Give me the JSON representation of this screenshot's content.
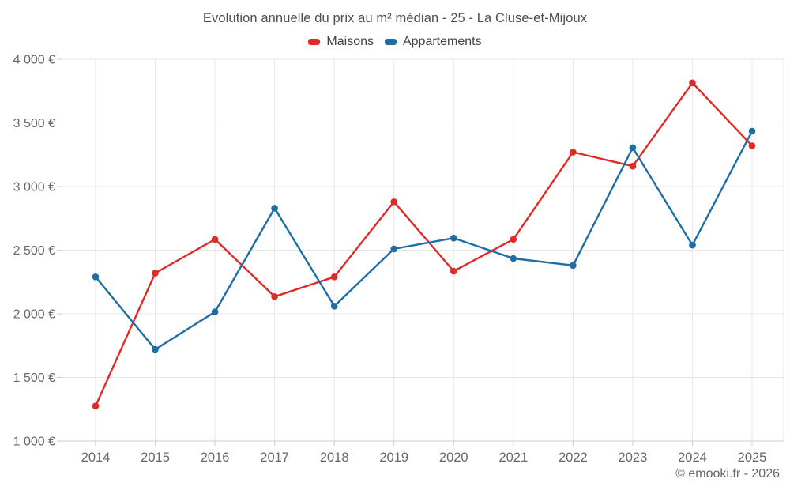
{
  "header": {
    "title": "Evolution annuelle du prix au m² médian - 25 - La Cluse-et-Mijoux"
  },
  "footer": {
    "credit": "© emooki.fr - 2026"
  },
  "colors": {
    "maisons": "#de2b26",
    "appartements": "#1c6ea4",
    "grid": "#e7e7e7",
    "axis": "#cccccc",
    "tick_text": "#666666",
    "title_text": "#4d4d4d",
    "legend_text": "#424242",
    "background": "#ffffff"
  },
  "chart_data": {
    "type": "line",
    "title": "Evolution annuelle du prix au m² médian - 25 - La Cluse-et-Mijoux",
    "categories": [
      "2014",
      "2015",
      "2016",
      "2017",
      "2018",
      "2019",
      "2020",
      "2021",
      "2022",
      "2023",
      "2024",
      "2025"
    ],
    "series": [
      {
        "name": "Maisons",
        "color": "#de2b26",
        "values": [
          1275,
          2320,
          2585,
          2135,
          2290,
          2880,
          2335,
          2585,
          3270,
          3160,
          3815,
          3320
        ]
      },
      {
        "name": "Appartements",
        "color": "#1c6ea4",
        "values": [
          2290,
          1720,
          2015,
          2830,
          2060,
          2510,
          2595,
          2435,
          2380,
          3305,
          2540,
          3435
        ]
      }
    ],
    "xlabel": "",
    "ylabel": "",
    "ylim": [
      1000,
      4000
    ],
    "yticks": {
      "values": [
        1000,
        1500,
        2000,
        2500,
        3000,
        3500,
        4000
      ],
      "labels": [
        "1 000 €",
        "1 500 €",
        "2 000 €",
        "2 500 €",
        "3 000 €",
        "3 500 €",
        "4 000 €"
      ]
    },
    "grid": true,
    "legend_position": "top",
    "marker": "circle"
  }
}
